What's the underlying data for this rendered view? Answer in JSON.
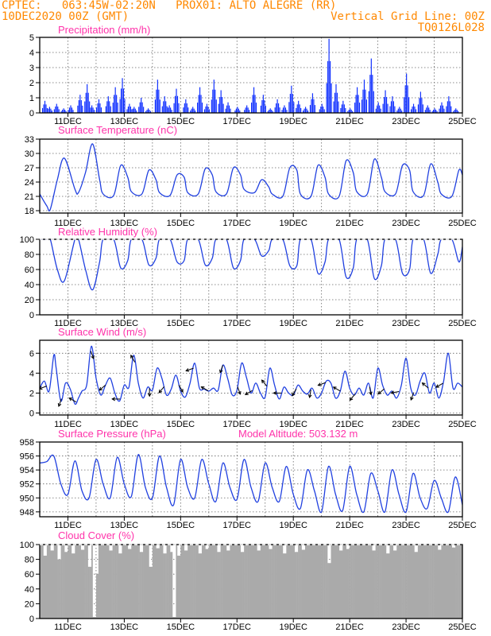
{
  "header": {
    "line1_left": "CPTEC:   063:45W-02:20N   PROX01: ALTO ALEGRE (RR)",
    "line2_left": "10DEC2020 00Z (GMT)",
    "line2_right": "Vertical Grid Line: 00Z",
    "line3_right": "TQ0126L028",
    "color": "#ff8800"
  },
  "colors": {
    "title": "#ff33aa",
    "series": "#2040e0",
    "bars": "#1030ff",
    "cloud": "#aaaaaa",
    "arrow": "#000000"
  },
  "chart_data": [
    {
      "type": "bar",
      "title": "Precipitation  (mm/h)",
      "x_ticks": [
        "11DEC",
        "13DEC",
        "15DEC",
        "17DEC",
        "19DEC",
        "21DEC",
        "23DEC",
        "25DEC"
      ],
      "y_ticks": [
        "0",
        "1",
        "2",
        "3",
        "4",
        "5"
      ],
      "ylim": [
        0,
        5
      ],
      "x_range_hours": [
        0,
        360
      ],
      "grid": "dotted vertical at 00Z",
      "peaks": [
        {
          "x": [
            4,
            8,
            14,
            20,
            26,
            34,
            40,
            44,
            50,
            58,
            64,
            70,
            76,
            80,
            86,
            92,
            100,
            106,
            110,
            116,
            124,
            130,
            136,
            142,
            148,
            154,
            160,
            168,
            176,
            182,
            190,
            196,
            202,
            208,
            214,
            220,
            226,
            232,
            240,
            246,
            252,
            258,
            264,
            270,
            276,
            282,
            288,
            294,
            300,
            306,
            312,
            318,
            324,
            330,
            336,
            342,
            348,
            354
          ],
          "y": [
            0.8,
            0.4,
            0.6,
            0.3,
            0.5,
            1.2,
            1.9,
            0.5,
            0.9,
            1.1,
            1.7,
            2.3,
            0.6,
            0.4,
            1.0,
            0.3,
            2.2,
            1.1,
            0.5,
            1.6,
            0.9,
            0.4,
            1.7,
            0.6,
            2.2,
            1.5,
            0.7,
            0.4,
            0.5,
            1.7,
            1.2,
            0.3,
            0.9,
            0.5,
            1.8,
            0.8,
            0.4,
            1.3,
            0.6,
            4.9,
            1.9,
            0.8,
            0.3,
            1.7,
            2.2,
            3.6,
            0.7,
            1.5,
            1.1,
            0.4,
            2.6,
            0.6,
            1.4,
            0.5,
            0.3,
            0.7,
            1.1,
            0.3
          ]
        }
      ]
    },
    {
      "type": "line",
      "title": "Surface Temperature  (nC)",
      "x_ticks": [
        "11DEC",
        "13DEC",
        "15DEC",
        "17DEC",
        "19DEC",
        "21DEC",
        "23DEC",
        "25DEC"
      ],
      "y_ticks": [
        "18",
        "21",
        "24",
        "27",
        "30",
        "33"
      ],
      "ylim": [
        17.5,
        33
      ],
      "x": [
        0,
        6,
        9,
        15,
        21,
        30,
        33,
        39,
        45,
        51,
        54,
        63,
        69,
        75,
        78,
        87,
        93,
        99,
        102,
        111,
        117,
        123,
        126,
        135,
        141,
        147,
        150,
        159,
        165,
        171,
        174,
        183,
        189,
        195,
        198,
        207,
        213,
        219,
        222,
        231,
        237,
        243,
        246,
        255,
        261,
        267,
        270,
        279,
        285,
        291,
        294,
        303,
        309,
        315,
        318,
        327,
        333,
        339,
        342,
        351,
        357,
        360
      ],
      "y": [
        21.5,
        19.0,
        18.3,
        24.5,
        29.0,
        22.5,
        21.8,
        26.0,
        32.0,
        24.5,
        21.5,
        21.2,
        27.5,
        25.0,
        22.0,
        21.5,
        26.5,
        24.5,
        21.8,
        21.2,
        25.5,
        25.0,
        21.8,
        21.5,
        26.8,
        25.5,
        22.0,
        21.5,
        27.0,
        25.5,
        22.5,
        21.8,
        24.5,
        23.0,
        21.5,
        21.0,
        27.0,
        26.5,
        21.5,
        21.0,
        27.5,
        25.0,
        21.5,
        21.0,
        28.5,
        26.0,
        22.0,
        21.5,
        28.8,
        25.0,
        22.0,
        21.5,
        27.5,
        26.5,
        22.0,
        21.2,
        27.8,
        24.0,
        21.5,
        21.0,
        26.5,
        25.5
      ]
    },
    {
      "type": "line",
      "title": "Relative Humidity  (%)",
      "x_ticks": [
        "11DEC",
        "13DEC",
        "15DEC",
        "17DEC",
        "19DEC",
        "21DEC",
        "23DEC",
        "25DEC"
      ],
      "y_ticks": [
        "0",
        "20",
        "40",
        "60",
        "80",
        "100"
      ],
      "ylim": [
        0,
        100
      ],
      "x": [
        0,
        6,
        9,
        15,
        21,
        30,
        33,
        39,
        45,
        51,
        54,
        63,
        69,
        75,
        78,
        87,
        93,
        99,
        102,
        111,
        117,
        123,
        126,
        135,
        141,
        147,
        150,
        159,
        165,
        171,
        174,
        183,
        189,
        195,
        198,
        207,
        213,
        219,
        222,
        231,
        237,
        243,
        246,
        255,
        261,
        267,
        270,
        279,
        285,
        291,
        294,
        303,
        309,
        315,
        318,
        327,
        333,
        339,
        342,
        351,
        357,
        360
      ],
      "y": [
        100,
        100,
        100,
        60,
        45,
        100,
        100,
        60,
        33,
        70,
        100,
        100,
        62,
        72,
        100,
        100,
        66,
        75,
        100,
        100,
        70,
        72,
        100,
        100,
        66,
        75,
        100,
        100,
        62,
        72,
        100,
        100,
        78,
        85,
        100,
        100,
        65,
        65,
        100,
        100,
        55,
        70,
        100,
        100,
        50,
        62,
        100,
        100,
        48,
        65,
        100,
        100,
        55,
        60,
        100,
        100,
        55,
        80,
        100,
        100,
        70,
        90
      ]
    },
    {
      "type": "line",
      "title": "Surface Wind  (m/s)",
      "x_ticks": [
        "11DEC",
        "13DEC",
        "15DEC",
        "17DEC",
        "19DEC",
        "21DEC",
        "23DEC",
        "25DEC"
      ],
      "y_ticks": [
        "0",
        "2",
        "4",
        "6"
      ],
      "ylim": [
        -0.2,
        7.3
      ],
      "x": [
        0,
        4,
        8,
        12,
        14,
        18,
        22,
        26,
        30,
        33,
        36,
        40,
        44,
        48,
        52,
        56,
        60,
        64,
        68,
        72,
        76,
        80,
        84,
        88,
        92,
        96,
        100,
        104,
        108,
        112,
        116,
        120,
        124,
        128,
        132,
        136,
        140,
        144,
        148,
        152,
        156,
        160,
        164,
        168,
        172,
        176,
        180,
        184,
        188,
        192,
        196,
        200,
        204,
        208,
        212,
        216,
        220,
        224,
        228,
        232,
        236,
        240,
        244,
        248,
        252,
        256,
        260,
        264,
        268,
        272,
        276,
        280,
        284,
        288,
        292,
        296,
        300,
        304,
        308,
        312,
        316,
        320,
        324,
        328,
        332,
        336,
        340,
        344,
        348,
        352,
        356,
        360
      ],
      "y": [
        2.5,
        3.2,
        2.2,
        5.8,
        4.5,
        1.2,
        3.0,
        2.4,
        0.9,
        1.5,
        2.2,
        2.8,
        6.7,
        3.5,
        1.8,
        2.8,
        3.5,
        2.0,
        1.2,
        2.8,
        2.6,
        5.8,
        3.0,
        1.5,
        2.6,
        2.3,
        4.5,
        3.5,
        1.8,
        2.4,
        3.8,
        2.2,
        1.6,
        3.0,
        5.0,
        2.5,
        2.4,
        2.2,
        2.5,
        2.3,
        4.8,
        3.5,
        1.8,
        2.3,
        5.0,
        3.6,
        2.0,
        3.0,
        2.0,
        1.6,
        4.5,
        2.8,
        1.4,
        2.6,
        2.0,
        1.8,
        2.8,
        2.2,
        1.9,
        2.5,
        1.5,
        2.0,
        3.2,
        3.0,
        1.5,
        2.2,
        4.2,
        2.5,
        1.8,
        2.5,
        1.8,
        3.0,
        1.5,
        4.5,
        2.8,
        1.8,
        2.2,
        1.5,
        2.8,
        5.5,
        2.5,
        1.8,
        3.2,
        4.0,
        2.0,
        3.0,
        1.5,
        3.2,
        6.0,
        2.5,
        3.0,
        2.6
      ]
    },
    {
      "type": "line",
      "title": "Surface Pressure  (hPa)",
      "annotation": "Model Altitude:  503.132  m",
      "x_ticks": [
        "11DEC",
        "13DEC",
        "15DEC",
        "17DEC",
        "19DEC",
        "21DEC",
        "23DEC",
        "25DEC"
      ],
      "y_ticks": [
        "948",
        "950",
        "952",
        "954",
        "956",
        "958"
      ],
      "ylim": [
        947.3,
        958
      ],
      "x": [
        0,
        6,
        12,
        18,
        24,
        30,
        36,
        42,
        48,
        54,
        60,
        66,
        72,
        78,
        84,
        90,
        96,
        102,
        108,
        114,
        120,
        126,
        132,
        138,
        144,
        150,
        156,
        162,
        168,
        174,
        180,
        186,
        192,
        198,
        204,
        210,
        216,
        222,
        228,
        234,
        240,
        246,
        252,
        258,
        264,
        270,
        276,
        282,
        288,
        294,
        300,
        306,
        312,
        318,
        324,
        330,
        336,
        342,
        348,
        354,
        360
      ],
      "y": [
        955.0,
        955.2,
        956.0,
        952.0,
        950.5,
        955.3,
        951.0,
        950.0,
        955.5,
        952.0,
        950.0,
        955.8,
        952.0,
        950.2,
        956.2,
        951.5,
        950.0,
        956.0,
        951.5,
        949.0,
        955.5,
        951.5,
        950.0,
        955.5,
        952.0,
        949.5,
        955.0,
        951.5,
        949.8,
        955.5,
        951.5,
        949.5,
        955.0,
        951.5,
        949.5,
        954.5,
        950.5,
        948.5,
        954.0,
        951.0,
        948.0,
        954.5,
        950.5,
        948.2,
        954.5,
        950.5,
        948.0,
        953.5,
        951.0,
        948.0,
        954.0,
        950.5,
        948.0,
        953.5,
        950.0,
        948.5,
        952.5,
        950.0,
        948.0,
        953.0,
        949.0
      ]
    },
    {
      "type": "bar",
      "title": "Cloud Cover  (%)",
      "x_ticks": [
        "11DEC",
        "13DEC",
        "15DEC",
        "17DEC",
        "19DEC",
        "21DEC",
        "23DEC",
        "25DEC"
      ],
      "y_ticks": [
        "0",
        "20",
        "40",
        "60",
        "80",
        "100"
      ],
      "ylim": [
        0,
        100
      ],
      "x_range_hours": [
        0,
        360
      ],
      "typical_value": 99,
      "dips": [
        {
          "x": [
            4,
            10,
            16,
            22,
            28,
            36,
            42,
            46,
            48,
            60,
            68,
            76,
            86,
            94,
            100,
            106,
            112,
            114,
            118,
            124,
            136,
            142,
            152,
            160,
            172,
            186,
            196,
            208,
            218,
            224,
            246,
            256,
            262,
            284,
            296,
            302,
            320,
            340,
            352
          ],
          "y": [
            85,
            92,
            80,
            90,
            88,
            93,
            70,
            2,
            60,
            92,
            88,
            94,
            90,
            70,
            95,
            88,
            90,
            2,
            85,
            92,
            88,
            94,
            90,
            92,
            90,
            92,
            94,
            88,
            90,
            93,
            75,
            92,
            94,
            92,
            88,
            92,
            90,
            93,
            96
          ]
        }
      ]
    }
  ]
}
